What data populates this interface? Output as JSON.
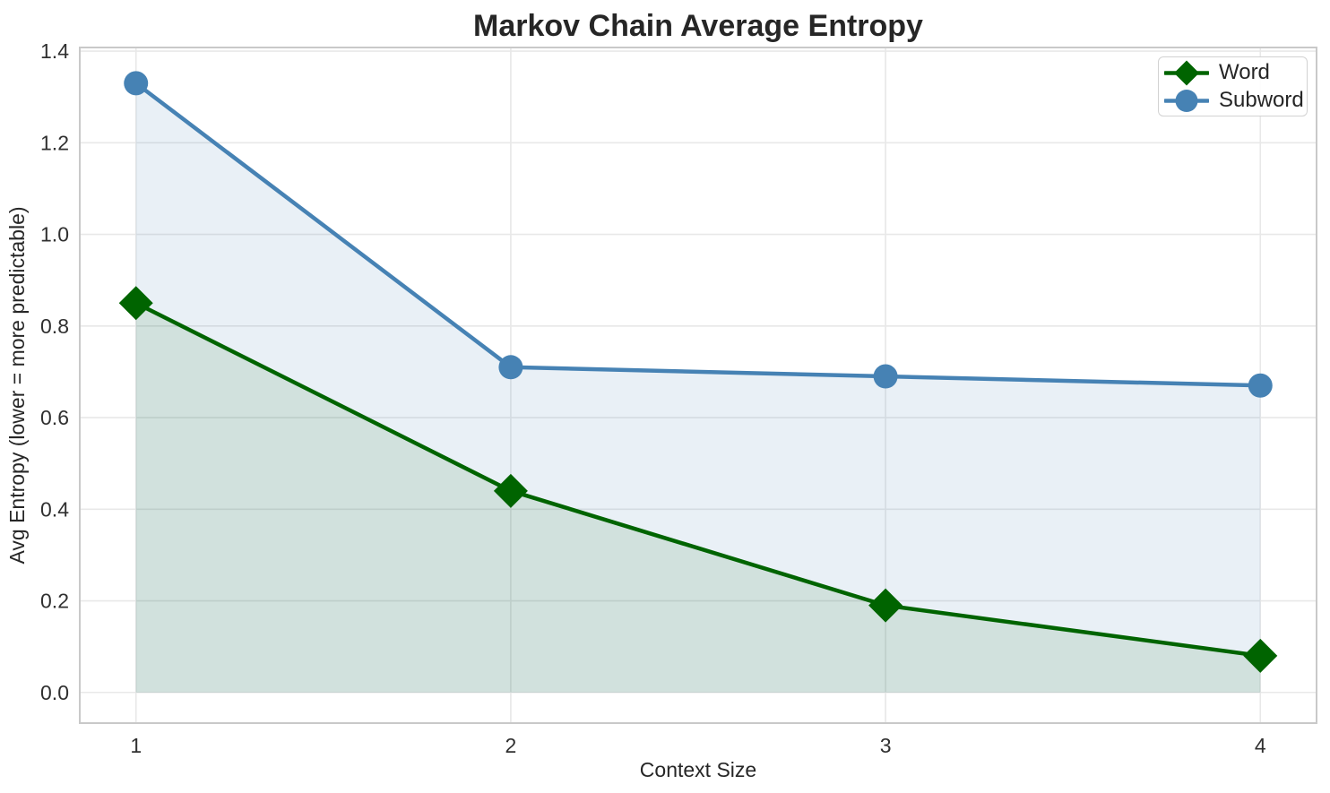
{
  "chart_data": {
    "type": "line",
    "title": "Markov Chain Average Entropy",
    "xlabel": "Context Size",
    "ylabel": "Avg Entropy (lower = more predictable)",
    "x": [
      1,
      2,
      3,
      4
    ],
    "series": [
      {
        "name": "Word",
        "values": [
          0.85,
          0.44,
          0.19,
          0.08
        ],
        "color": "#006400",
        "marker": "diamond",
        "fill": true,
        "fill_alpha": 0.1
      },
      {
        "name": "Subword",
        "values": [
          1.33,
          0.71,
          0.69,
          0.67
        ],
        "color": "#4682B4",
        "marker": "circle",
        "fill": true,
        "fill_alpha": 0.12
      }
    ],
    "xticks": [
      1,
      2,
      3,
      4
    ],
    "xtick_labels": [
      "1",
      "2",
      "3",
      "4"
    ],
    "yticks": [
      0.0,
      0.2,
      0.4,
      0.6,
      0.8,
      1.0,
      1.2,
      1.4
    ],
    "ytick_labels": [
      "0.0",
      "0.2",
      "0.4",
      "0.6",
      "0.8",
      "1.0",
      "1.2",
      "1.4"
    ],
    "xlim": [
      0.85,
      4.15
    ],
    "ylim": [
      -0.067,
      1.408
    ],
    "grid": true,
    "grid_color": "#e8e8e8",
    "spine_color": "#c9c9c9",
    "text_color": "#262626",
    "legend_position": "upper right",
    "fill_baseline": 0.0
  }
}
